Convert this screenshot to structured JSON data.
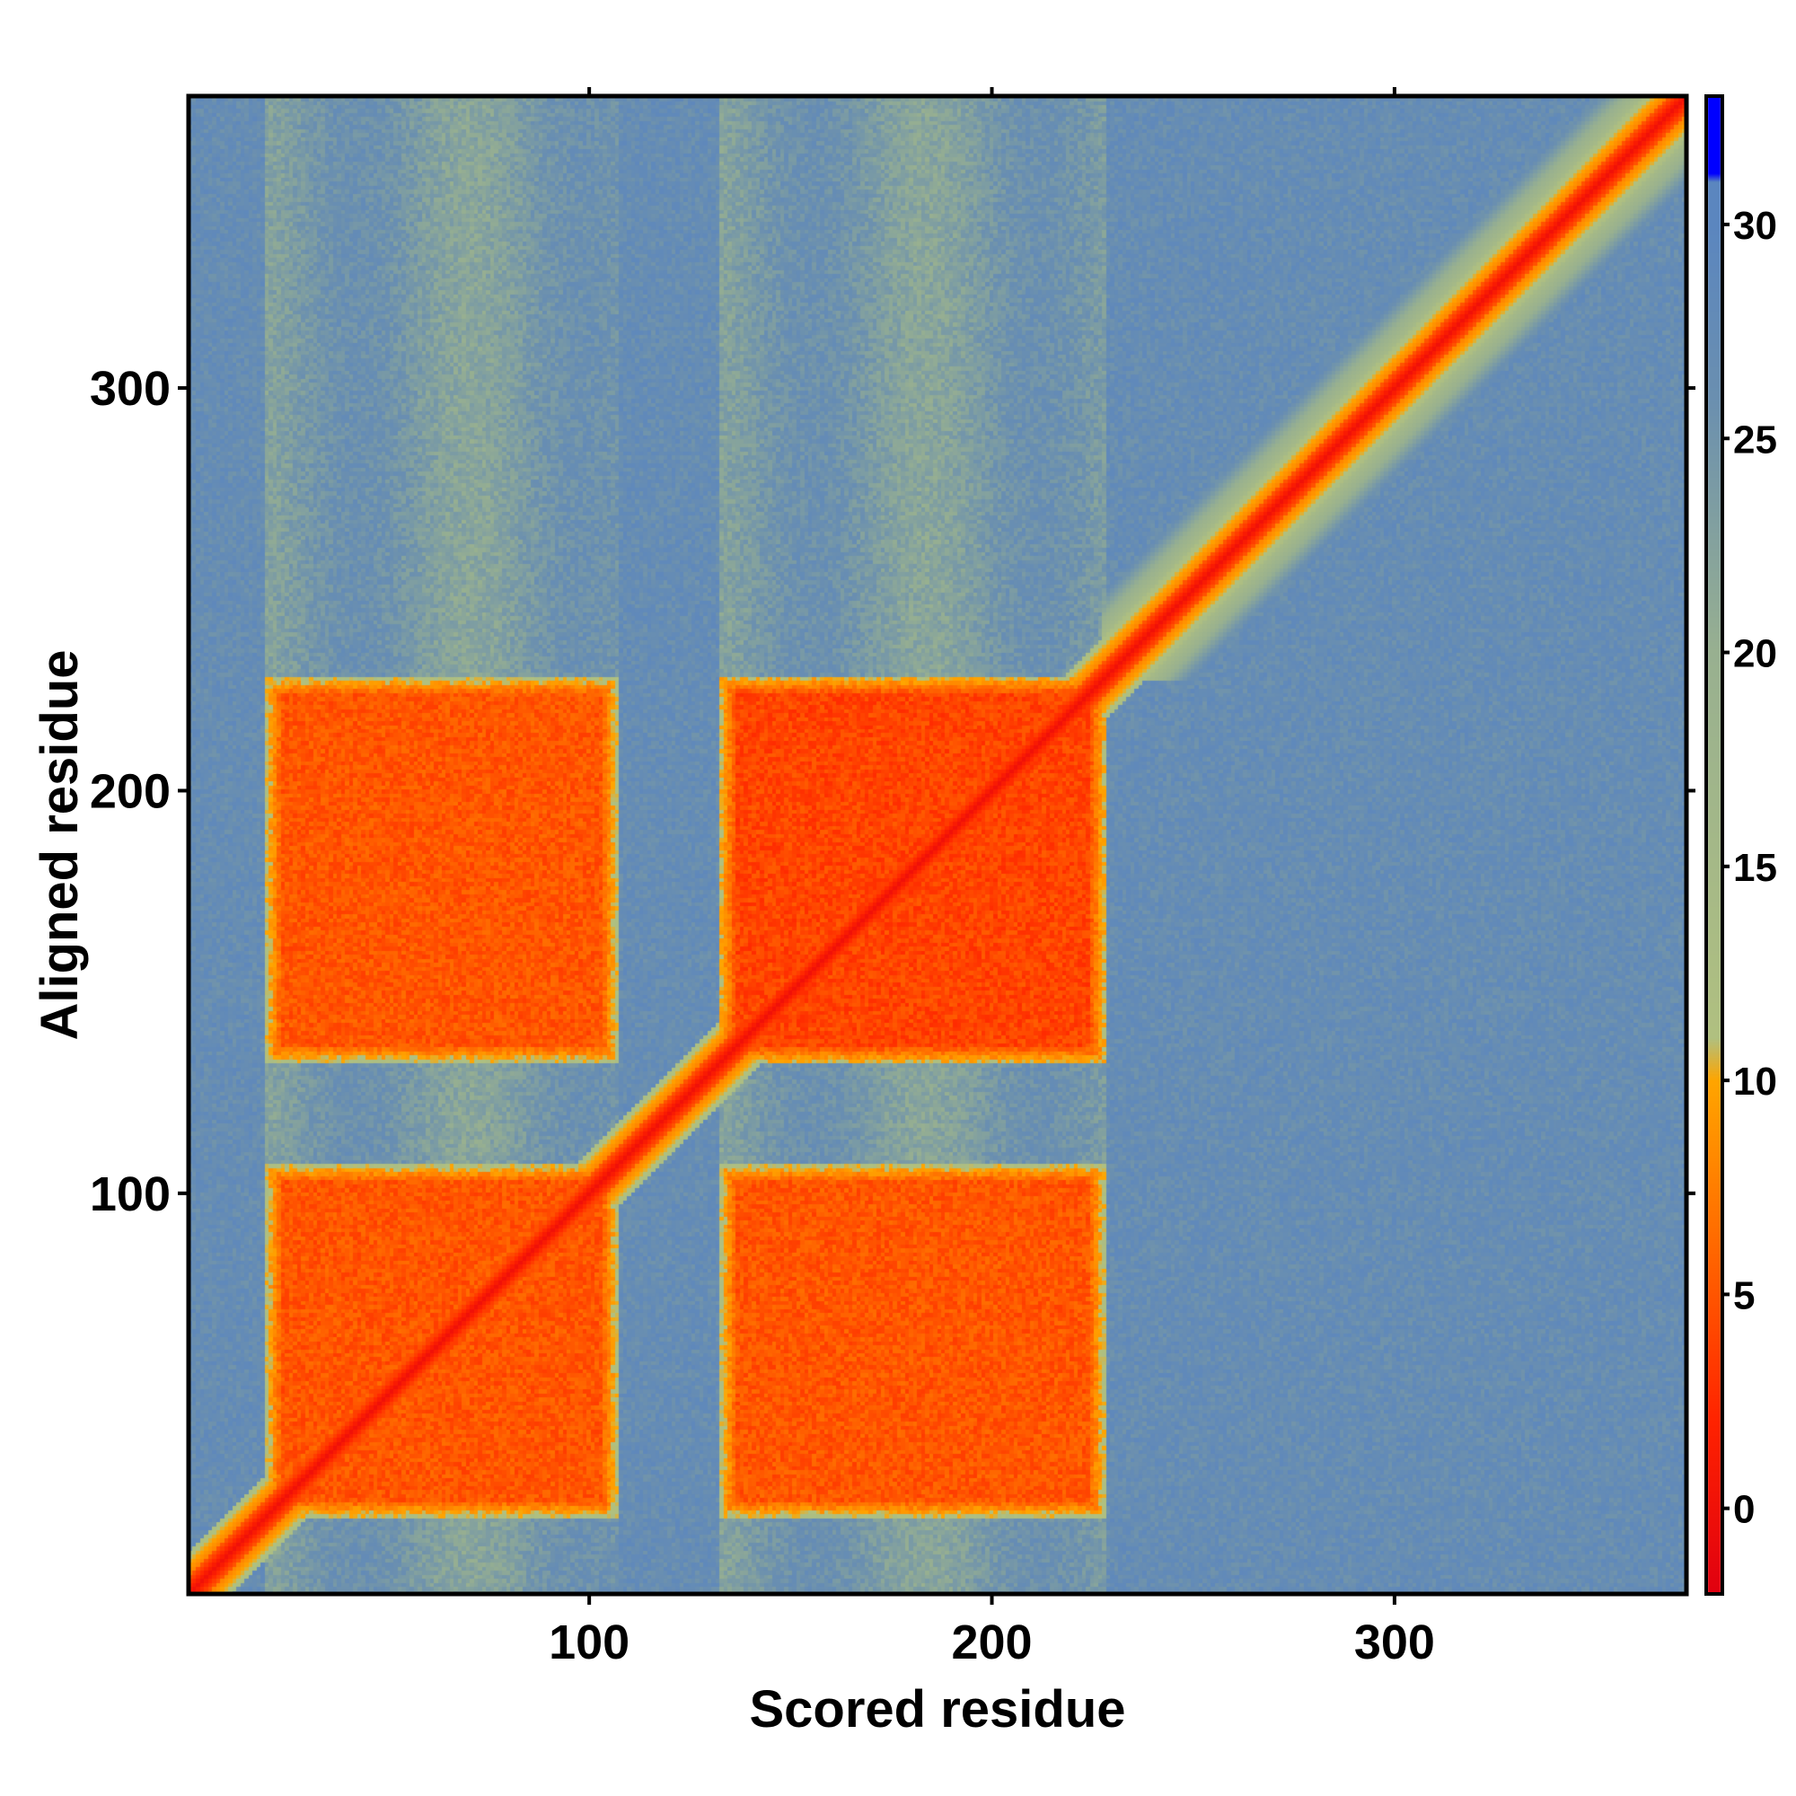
{
  "chart_data": {
    "type": "heatmap",
    "title": "",
    "xlabel": "Scored residue",
    "ylabel": "Aligned residue",
    "xlim": [
      1,
      372
    ],
    "ylim": [
      1,
      372
    ],
    "x_ticks": [
      100,
      200,
      300
    ],
    "y_ticks": [
      100,
      200,
      300
    ],
    "grid": false,
    "colorbar": {
      "range": [
        -2,
        33
      ],
      "ticks": [
        0,
        5,
        10,
        15,
        20,
        25,
        30
      ],
      "tick_labels": [
        "0",
        "5",
        "10",
        "15",
        "20",
        "25",
        "30"
      ],
      "placement": "right",
      "stops": [
        {
          "value": -2,
          "color": "#e00010"
        },
        {
          "value": 2,
          "color": "#ff2200"
        },
        {
          "value": 6,
          "color": "#ff6600"
        },
        {
          "value": 10,
          "color": "#ffa500"
        },
        {
          "value": 11,
          "color": "#b0c080"
        },
        {
          "value": 20,
          "color": "#98b090"
        },
        {
          "value": 26,
          "color": "#6a8fb0"
        },
        {
          "value": 30,
          "color": "#5b86bf"
        },
        {
          "value": 31,
          "color": "#5b86bf"
        },
        {
          "value": 31.2,
          "color": "#0000ff"
        },
        {
          "value": 33,
          "color": "#0000ff"
        }
      ]
    },
    "background_value": 27,
    "diagonal_value": 0,
    "domains": [
      {
        "name": "A",
        "range": [
          20,
          107
        ]
      },
      {
        "name": "B",
        "range": [
          133,
          228
        ]
      }
    ],
    "block_values": [
      {
        "rows": "A",
        "cols": "A",
        "value": 5
      },
      {
        "rows": "A",
        "cols": "B",
        "value": 5
      },
      {
        "rows": "B",
        "cols": "A",
        "value": 5
      },
      {
        "rows": "B",
        "cols": "B",
        "value": 4
      }
    ],
    "secondary_values": [
      {
        "axis": "both",
        "range": [
          228,
          372
        ],
        "near_diagonal_value": 3
      }
    ]
  }
}
